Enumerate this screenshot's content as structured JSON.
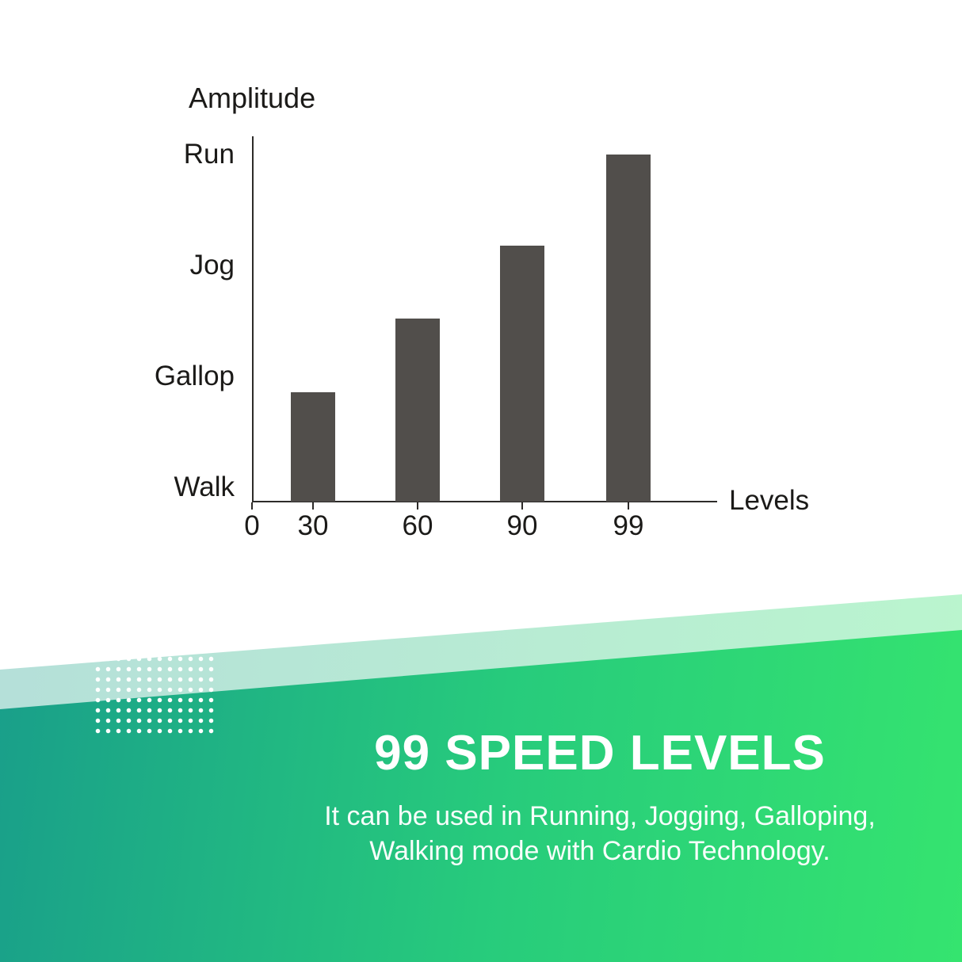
{
  "chart_data": {
    "type": "bar",
    "title": "",
    "ylabel": "Amplitude",
    "xlabel": "Levels",
    "y_tick_labels_top_to_bottom": [
      "Run",
      "Jog",
      "Gallop",
      "Walk"
    ],
    "x_tick_labels": [
      "0",
      "30",
      "60",
      "90",
      "99"
    ],
    "categories": [
      "30",
      "60",
      "90",
      "99"
    ],
    "values_percent_of_axis": [
      30,
      50,
      70,
      95
    ],
    "bar_color": "#514e4b",
    "axis_color": "#2d2b29",
    "grid": false,
    "legend": false
  },
  "banner": {
    "title": "99 SPEED LEVELS",
    "subtitle_lines": [
      "It can be used in Running, Jogging, Galloping,",
      "Walking mode with Cardio Technology."
    ],
    "text_color": "#ffffff",
    "gradient_left_color": "#17988c",
    "gradient_right_color": "#35e46f",
    "dot_pattern_color": "#ffffff"
  }
}
